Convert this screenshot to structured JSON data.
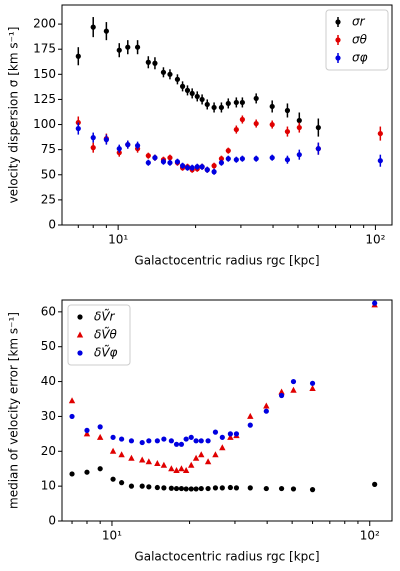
{
  "chart_data": [
    {
      "type": "errorbar",
      "x": [
        7.0,
        8.0,
        9.0,
        10.1,
        10.9,
        11.9,
        13.1,
        13.9,
        15.0,
        15.9,
        17.0,
        17.8,
        18.6,
        19.4,
        20.3,
        21.2,
        22.2,
        23.6,
        25.2,
        26.8,
        28.8,
        30.4,
        34.4,
        39.7,
        45.5,
        50.6,
        60.0,
        104.5
      ],
      "series": [
        {
          "name": "σr",
          "color": "#000000",
          "marker": "circle",
          "values": [
            168,
            197,
            193,
            174,
            177,
            177,
            162,
            161,
            152,
            150,
            145,
            138,
            134,
            131,
            128,
            125,
            120,
            117,
            117,
            121,
            122,
            122,
            126,
            118,
            114,
            104,
            97,
            null
          ],
          "errors": [
            9,
            10,
            9,
            7,
            7,
            7,
            6,
            6,
            5,
            5,
            5,
            5,
            5,
            5,
            5,
            5,
            5,
            5,
            5,
            5,
            5,
            5,
            5,
            6,
            7,
            8,
            9,
            null
          ]
        },
        {
          "name": "σθ",
          "color": "#e00000",
          "marker": "circle",
          "values": [
            102,
            77,
            86,
            72,
            80,
            76,
            69,
            67,
            65,
            67,
            62,
            57,
            58,
            55,
            56,
            58,
            55,
            59,
            66,
            74,
            95,
            105,
            101,
            100,
            93,
            97,
            76,
            91
          ],
          "errors": [
            6,
            5,
            5,
            4,
            4,
            4,
            3,
            3,
            3,
            3,
            3,
            3,
            3,
            3,
            3,
            3,
            3,
            3,
            3,
            3,
            4,
            4,
            4,
            4,
            5,
            5,
            6,
            7
          ]
        },
        {
          "name": "σφ",
          "color": "#0000e0",
          "marker": "circle",
          "values": [
            96,
            87,
            85,
            76,
            80,
            79,
            62,
            67,
            63,
            62,
            63,
            59,
            57,
            57,
            58,
            58,
            55,
            53,
            62,
            66,
            65,
            66,
            66,
            67,
            65,
            70,
            76,
            64
          ],
          "errors": [
            6,
            5,
            5,
            4,
            4,
            4,
            3,
            3,
            3,
            3,
            3,
            3,
            3,
            3,
            3,
            3,
            3,
            3,
            3,
            3,
            3,
            3,
            3,
            3,
            4,
            5,
            6,
            6
          ]
        }
      ],
      "xlim": [
        6.05,
        116
      ],
      "ylim": [
        0,
        219
      ],
      "log_x": true,
      "xticks": [
        {
          "value": 10,
          "label": "10¹"
        },
        {
          "value": 100,
          "label": "10²"
        }
      ],
      "yticks": [
        0,
        25,
        50,
        75,
        100,
        125,
        150,
        175,
        200
      ],
      "xlabel": "Galactocentric radius rgc [kpc]",
      "ylabel": "velocity dispersion σ [km s⁻¹]",
      "legend": "upper right"
    },
    {
      "type": "scatter",
      "x": [
        7.0,
        8.0,
        9.0,
        10.1,
        10.9,
        11.9,
        13.1,
        13.9,
        15.0,
        15.9,
        17.0,
        17.8,
        18.6,
        19.4,
        20.3,
        21.2,
        22.2,
        23.6,
        25.2,
        26.8,
        28.8,
        30.4,
        34.4,
        39.7,
        45.5,
        50.6,
        60.0,
        104.5
      ],
      "series": [
        {
          "name": "δṼr",
          "color": "#000000",
          "marker": "circle",
          "values": [
            13.5,
            14,
            15,
            12,
            11,
            10,
            10,
            9.8,
            9.6,
            9.5,
            9.4,
            9.3,
            9.3,
            9.2,
            9.2,
            9.2,
            9.3,
            9.3,
            9.5,
            9.5,
            9.6,
            9.5,
            9.5,
            9.3,
            9.3,
            9.2,
            9,
            10.5
          ]
        },
        {
          "name": "δṼθ",
          "color": "#e00000",
          "marker": "triangle",
          "values": [
            34.5,
            25,
            24,
            20,
            19,
            18,
            17.5,
            17,
            16.5,
            16,
            15,
            14.5,
            15,
            14.5,
            16,
            18,
            19,
            17,
            19,
            21,
            24,
            24.5,
            30,
            33,
            37,
            37.5,
            38,
            62
          ]
        },
        {
          "name": "δṼφ",
          "color": "#0000e0",
          "marker": "circle",
          "values": [
            30,
            26,
            27,
            24,
            23.5,
            23,
            22.5,
            23,
            23,
            23.5,
            23,
            22,
            22,
            23.5,
            24,
            23,
            23,
            23,
            25.5,
            24,
            25,
            25,
            27.5,
            31.5,
            36,
            40,
            39.5,
            62.5
          ]
        }
      ],
      "xlim": [
        6.4,
        122
      ],
      "ylim": [
        0,
        63.4
      ],
      "log_x": true,
      "xticks": [
        {
          "value": 10,
          "label": "10¹"
        },
        {
          "value": 100,
          "label": "10²"
        }
      ],
      "yticks": [
        0,
        10,
        20,
        30,
        40,
        50,
        60
      ],
      "xlabel": "Galactocentric radius rgc [kpc]",
      "ylabel": "median of velocity error [km s⁻¹]",
      "legend": "upper left"
    }
  ]
}
